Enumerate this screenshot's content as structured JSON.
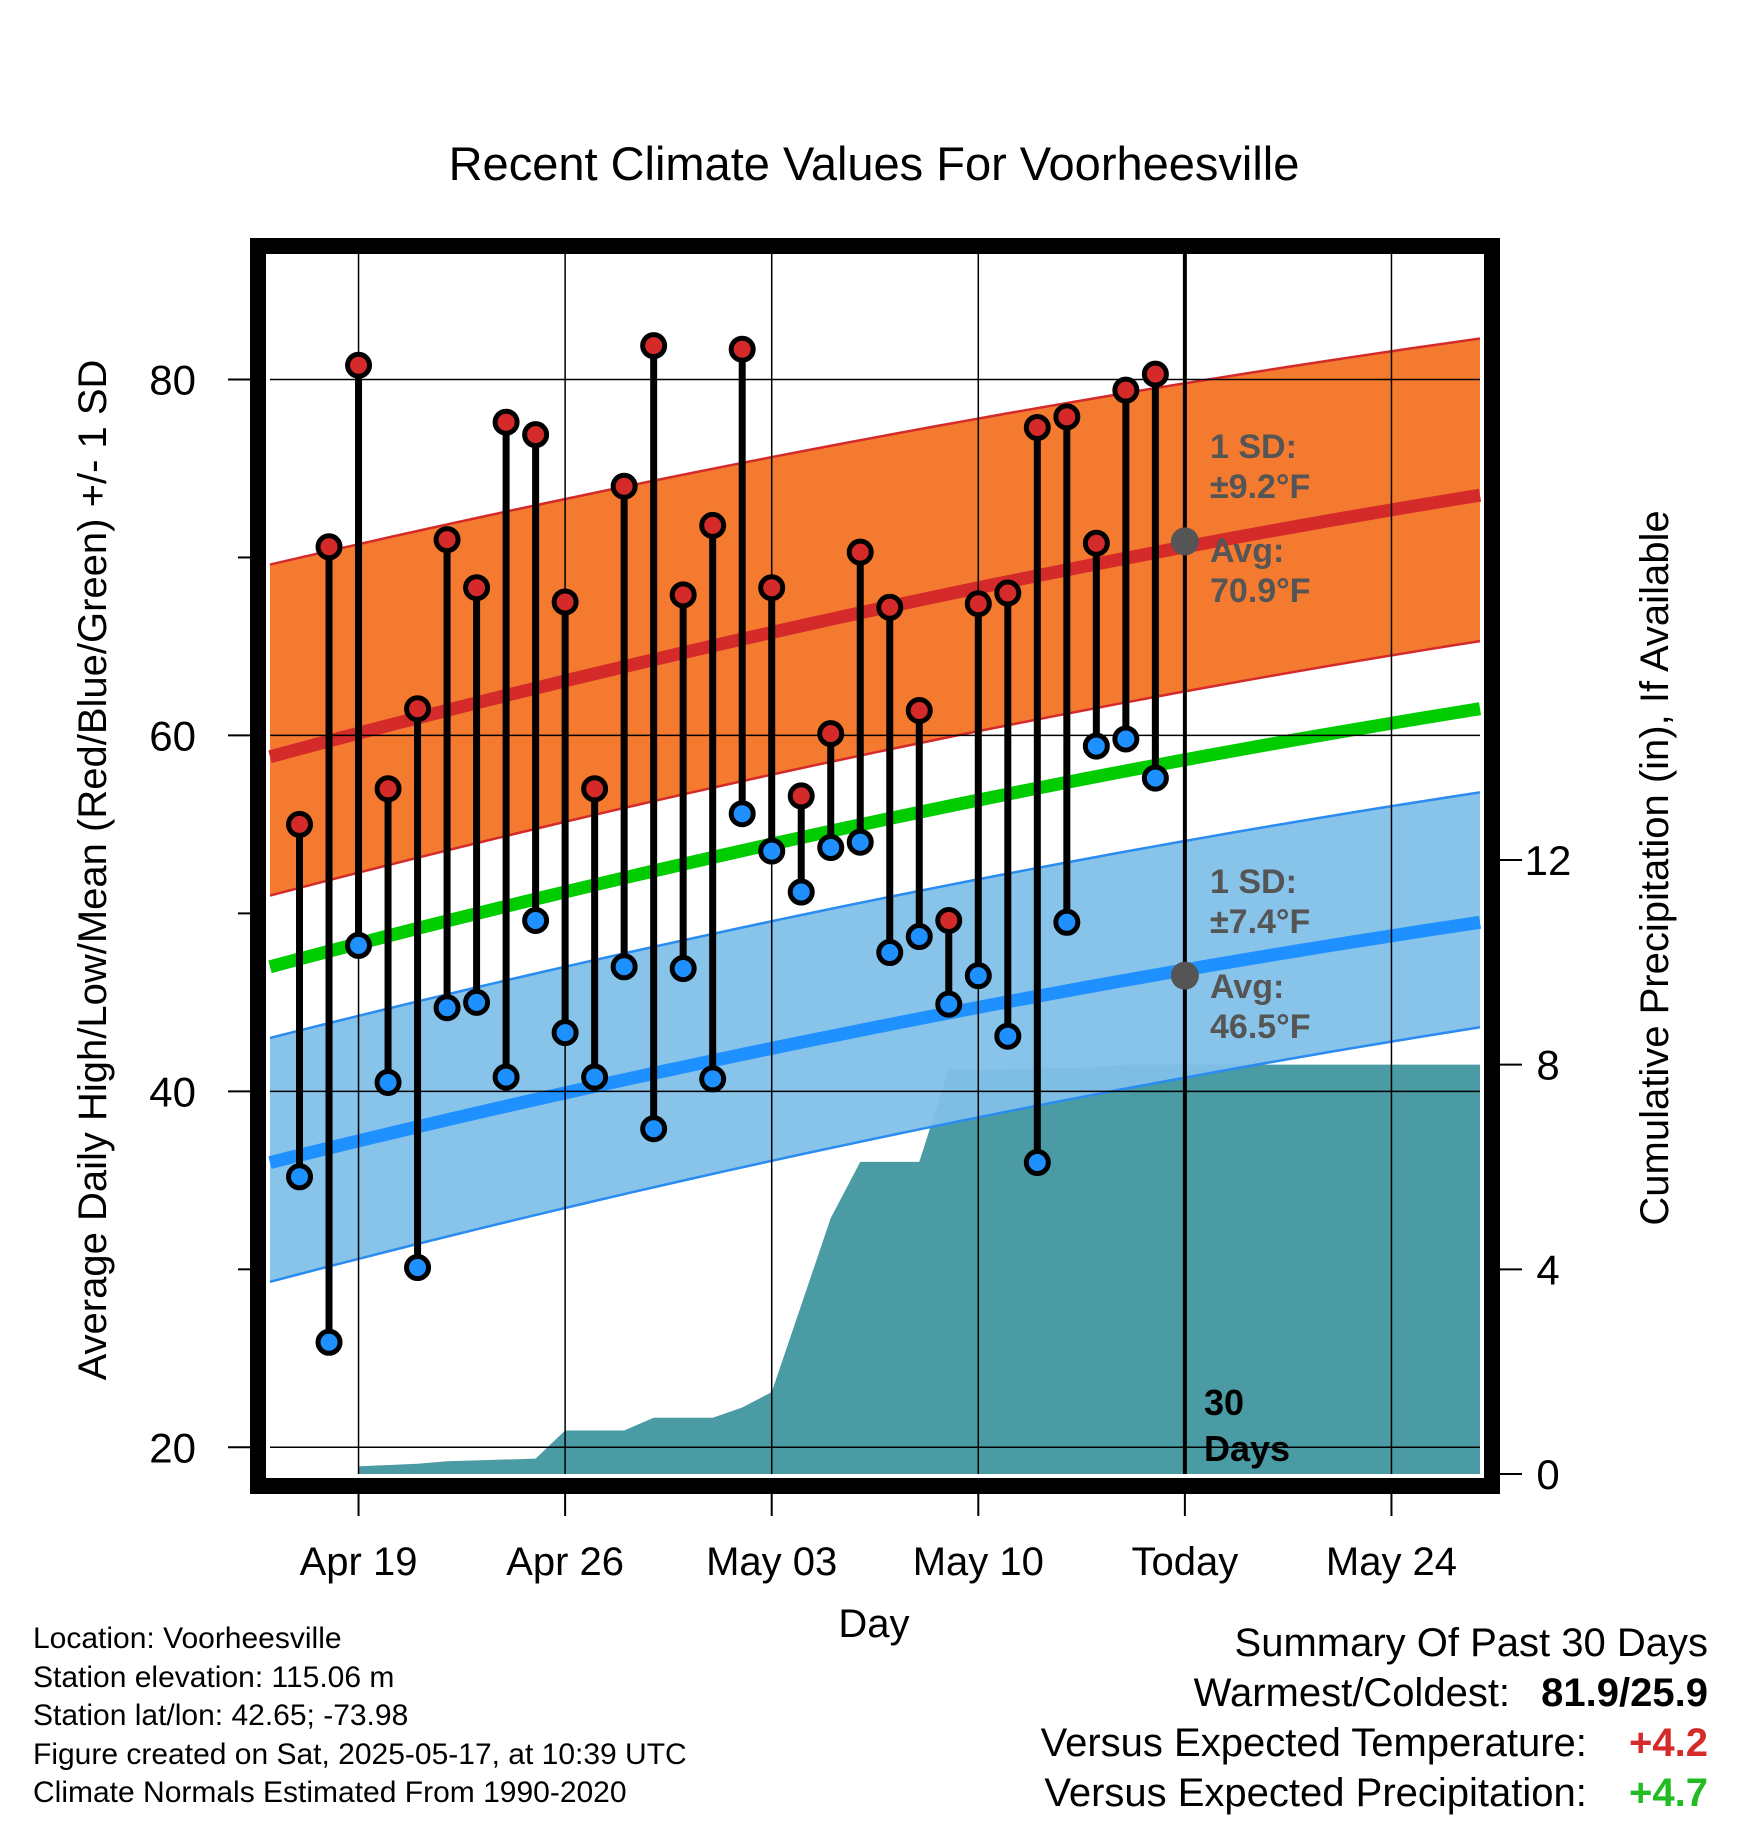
{
  "chart_data": {
    "type": "line",
    "title": "Recent Climate Values For Voorheesville",
    "xlabel": "Day",
    "ylabel": "Average Daily High/Low/Mean (Red/Blue/Green) +/- 1 SD",
    "y2label": "Cumulative Precipitation (in), If Available",
    "x_start": "Apr 16",
    "x_end": "May 27",
    "today": "May 17",
    "ylim": [
      18.5,
      87.5
    ],
    "y2lim": [
      0,
      24
    ],
    "x_ticks": [
      {
        "date": "Apr 19",
        "label": "Apr 19"
      },
      {
        "date": "Apr 26",
        "label": "Apr 26"
      },
      {
        "date": "May 03",
        "label": "May 03"
      },
      {
        "date": "May 10",
        "label": "May 10"
      },
      {
        "date": "May 17",
        "label": "Today"
      },
      {
        "date": "May 24",
        "label": "May 24"
      }
    ],
    "y_ticks": [
      20,
      40,
      60,
      80
    ],
    "y_minor_ticks": [
      30,
      50,
      70
    ],
    "y2_ticks": [
      0,
      4,
      8,
      12
    ],
    "grid": true,
    "normals": {
      "high_mean": {
        "start": 58.8,
        "end": 73.5
      },
      "high_upper": {
        "start": 69.6,
        "end": 82.3
      },
      "high_lower": {
        "start": 51.0,
        "end": 65.3
      },
      "mean": {
        "start": 47.0,
        "end": 61.5
      },
      "low_mean": {
        "start": 36.0,
        "end": 49.5
      },
      "low_upper": {
        "start": 43.0,
        "end": 56.8
      },
      "low_lower": {
        "start": 29.3,
        "end": 43.6
      }
    },
    "annotations": {
      "high_sd": "1 SD:",
      "high_sd_value": "±9.2°F",
      "high_avg": "Avg:",
      "high_avg_value": "70.9°F",
      "high_avg_point": 70.9,
      "low_sd": "1 SD:",
      "low_sd_value": "±7.4°F",
      "low_avg": "Avg:",
      "low_avg_value": "46.5°F",
      "low_avg_point": 46.5,
      "window_line1": "30",
      "window_line2": "Days"
    },
    "series": [
      {
        "name": "High",
        "color": "#d42a2a",
        "values": [
          {
            "date": "Apr 17",
            "y": 55.0
          },
          {
            "date": "Apr 18",
            "y": 70.6
          },
          {
            "date": "Apr 19",
            "y": 80.8
          },
          {
            "date": "Apr 20",
            "y": 57.0
          },
          {
            "date": "Apr 21",
            "y": 61.5
          },
          {
            "date": "Apr 22",
            "y": 71.0
          },
          {
            "date": "Apr 23",
            "y": 68.3
          },
          {
            "date": "Apr 24",
            "y": 77.6
          },
          {
            "date": "Apr 25",
            "y": 76.9
          },
          {
            "date": "Apr 26",
            "y": 67.5
          },
          {
            "date": "Apr 27",
            "y": 57.0
          },
          {
            "date": "Apr 28",
            "y": 74.0
          },
          {
            "date": "Apr 29",
            "y": 81.9
          },
          {
            "date": "Apr 30",
            "y": 67.9
          },
          {
            "date": "May 01",
            "y": 71.8
          },
          {
            "date": "May 02",
            "y": 81.7
          },
          {
            "date": "May 03",
            "y": 68.3
          },
          {
            "date": "May 04",
            "y": 56.6
          },
          {
            "date": "May 05",
            "y": 60.1
          },
          {
            "date": "May 06",
            "y": 70.3
          },
          {
            "date": "May 07",
            "y": 67.2
          },
          {
            "date": "May 08",
            "y": 61.4
          },
          {
            "date": "May 09",
            "y": 49.6
          },
          {
            "date": "May 10",
            "y": 67.4
          },
          {
            "date": "May 11",
            "y": 68.0
          },
          {
            "date": "May 12",
            "y": 77.3
          },
          {
            "date": "May 13",
            "y": 77.9
          },
          {
            "date": "May 14",
            "y": 70.8
          },
          {
            "date": "May 15",
            "y": 79.4
          },
          {
            "date": "May 16",
            "y": 80.3
          }
        ]
      },
      {
        "name": "Low",
        "color": "#1e90ff",
        "values": [
          {
            "date": "Apr 17",
            "y": 35.2
          },
          {
            "date": "Apr 18",
            "y": 25.9
          },
          {
            "date": "Apr 19",
            "y": 48.2
          },
          {
            "date": "Apr 20",
            "y": 40.5
          },
          {
            "date": "Apr 21",
            "y": 30.1
          },
          {
            "date": "Apr 22",
            "y": 44.7
          },
          {
            "date": "Apr 23",
            "y": 45.0
          },
          {
            "date": "Apr 24",
            "y": 40.8
          },
          {
            "date": "Apr 25",
            "y": 49.6
          },
          {
            "date": "Apr 26",
            "y": 43.3
          },
          {
            "date": "Apr 27",
            "y": 40.8
          },
          {
            "date": "Apr 28",
            "y": 47.0
          },
          {
            "date": "Apr 29",
            "y": 37.9
          },
          {
            "date": "Apr 30",
            "y": 46.9
          },
          {
            "date": "May 01",
            "y": 40.7
          },
          {
            "date": "May 02",
            "y": 55.6
          },
          {
            "date": "May 03",
            "y": 53.5
          },
          {
            "date": "May 04",
            "y": 51.2
          },
          {
            "date": "May 05",
            "y": 53.7
          },
          {
            "date": "May 06",
            "y": 54.0
          },
          {
            "date": "May 07",
            "y": 47.8
          },
          {
            "date": "May 08",
            "y": 48.7
          },
          {
            "date": "May 09",
            "y": 44.9
          },
          {
            "date": "May 10",
            "y": 46.5
          },
          {
            "date": "May 11",
            "y": 43.1
          },
          {
            "date": "May 12",
            "y": 36.0
          },
          {
            "date": "May 13",
            "y": 49.5
          },
          {
            "date": "May 14",
            "y": 59.4
          },
          {
            "date": "May 15",
            "y": 59.8
          },
          {
            "date": "May 16",
            "y": 57.6
          }
        ]
      },
      {
        "name": "Cumulative Precipitation",
        "color": "#4a9ba3",
        "axis": "right",
        "values": [
          {
            "date": "Apr 19",
            "y": 0.15
          },
          {
            "date": "Apr 21",
            "y": 0.2
          },
          {
            "date": "Apr 22",
            "y": 0.25
          },
          {
            "date": "Apr 25",
            "y": 0.3
          },
          {
            "date": "Apr 26",
            "y": 0.85
          },
          {
            "date": "Apr 28",
            "y": 0.85
          },
          {
            "date": "Apr 29",
            "y": 1.1
          },
          {
            "date": "May 01",
            "y": 1.1
          },
          {
            "date": "May 02",
            "y": 1.3
          },
          {
            "date": "May 03",
            "y": 1.6
          },
          {
            "date": "May 04",
            "y": 3.3
          },
          {
            "date": "May 05",
            "y": 5.0
          },
          {
            "date": "May 06",
            "y": 6.1
          },
          {
            "date": "May 07",
            "y": 6.1
          },
          {
            "date": "May 08",
            "y": 6.1
          },
          {
            "date": "May 09",
            "y": 7.9
          },
          {
            "date": "May 10",
            "y": 7.9
          },
          {
            "date": "May 14",
            "y": 7.95
          },
          {
            "date": "May 15",
            "y": 8.0
          },
          {
            "date": "May 17",
            "y": 8.0
          },
          {
            "date": "May 27",
            "y": 8.0
          }
        ]
      }
    ]
  },
  "footer": {
    "location": "Location: Voorheesville",
    "elevation": "Station elevation: 115.06 m",
    "latlon": "Station lat/lon: 42.65; -73.98",
    "created": "Figure created on Sat, 2025-05-17, at 10:39 UTC",
    "normals": "Climate Normals Estimated From 1990-2020"
  },
  "summary": {
    "title": "Summary Of Past 30 Days",
    "warm_cold_label": "Warmest/Coldest:",
    "warm_cold_value": "81.9/25.9",
    "temp_label": "Versus Expected Temperature:",
    "temp_value": "+4.2",
    "temp_color": "#d42a2a",
    "precip_label": "Versus Expected Precipitation:",
    "precip_value": "+4.7",
    "precip_color": "#22bb22"
  },
  "colors": {
    "high_band": "#f47a30",
    "high_line": "#d42a2a",
    "low_band": "#82c0e8",
    "low_line": "#1e90ff",
    "low_band_edge": "#2a8cf0",
    "mean_line": "#00cc00",
    "precip": "#4a9ba3",
    "annotation": "#555555"
  }
}
